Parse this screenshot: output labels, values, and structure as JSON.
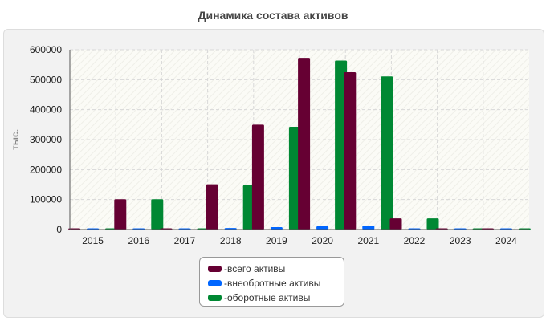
{
  "chart_data": {
    "type": "bar",
    "title": "Динамика состава активов",
    "xlabel": "",
    "ylabel": "тыс.",
    "ylim": [
      0,
      600000
    ],
    "yticks": [
      "0",
      "100000",
      "200000",
      "300000",
      "400000",
      "500000",
      "600000"
    ],
    "categories": [
      "2015",
      "2016",
      "2017",
      "2018",
      "2019",
      "2020",
      "2021",
      "2022",
      "2023",
      "2024"
    ],
    "series": [
      {
        "name": "всего активы",
        "prefix": "- ",
        "color": "#660033",
        "values": [
          2000,
          101000,
          2000,
          151000,
          350000,
          573000,
          525000,
          37000,
          2000,
          2000
        ]
      },
      {
        "name": "внеобротные активы",
        "prefix": "- ",
        "color": "#0066ff",
        "values": [
          1000,
          1500,
          1000,
          5000,
          8000,
          11000,
          13000,
          1500,
          1000,
          1000
        ]
      },
      {
        "name": "оборотные активы",
        "prefix": "- ",
        "color": "#008833",
        "values": [
          1500,
          101000,
          1500,
          148000,
          343000,
          564000,
          511000,
          37000,
          1500,
          1500
        ]
      }
    ],
    "grid": true,
    "legend_position": "bottom-center"
  }
}
